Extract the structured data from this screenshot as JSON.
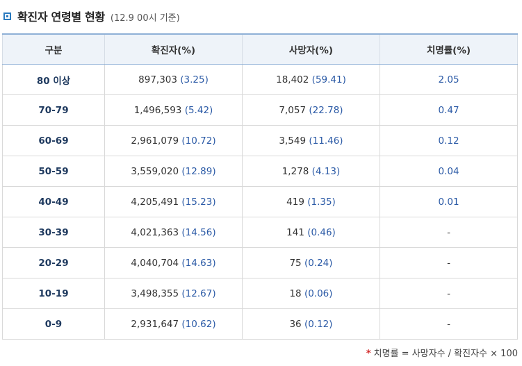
{
  "title": "확진자 연령별 현황",
  "title_note": "(12.9 00시 기준)",
  "table": {
    "headers": [
      "구분",
      "확진자(%)",
      "사망자(%)",
      "치명률(%)"
    ],
    "rows": [
      {
        "age": "80 이상",
        "cases": "897,303",
        "cases_pct": "(3.25)",
        "deaths": "18,402",
        "deaths_pct": "(59.41)",
        "cfr": "2.05"
      },
      {
        "age": "70-79",
        "cases": "1,496,593",
        "cases_pct": "(5.42)",
        "deaths": "7,057",
        "deaths_pct": "(22.78)",
        "cfr": "0.47"
      },
      {
        "age": "60-69",
        "cases": "2,961,079",
        "cases_pct": "(10.72)",
        "deaths": "3,549",
        "deaths_pct": "(11.46)",
        "cfr": "0.12"
      },
      {
        "age": "50-59",
        "cases": "3,559,020",
        "cases_pct": "(12.89)",
        "deaths": "1,278",
        "deaths_pct": "(4.13)",
        "cfr": "0.04"
      },
      {
        "age": "40-49",
        "cases": "4,205,491",
        "cases_pct": "(15.23)",
        "deaths": "419",
        "deaths_pct": "(1.35)",
        "cfr": "0.01"
      },
      {
        "age": "30-39",
        "cases": "4,021,363",
        "cases_pct": "(14.56)",
        "deaths": "141",
        "deaths_pct": "(0.46)",
        "cfr": "-"
      },
      {
        "age": "20-29",
        "cases": "4,040,704",
        "cases_pct": "(14.63)",
        "deaths": "75",
        "deaths_pct": "(0.24)",
        "cfr": "-"
      },
      {
        "age": "10-19",
        "cases": "3,498,355",
        "cases_pct": "(12.67)",
        "deaths": "18",
        "deaths_pct": "(0.06)",
        "cfr": "-"
      },
      {
        "age": "0-9",
        "cases": "2,931,647",
        "cases_pct": "(10.62)",
        "deaths": "36",
        "deaths_pct": "(0.12)",
        "cfr": "-"
      }
    ]
  },
  "footnote": {
    "marker": "*",
    "text": "치명률 = 사망자수 / 확진자수 × 100"
  },
  "colors": {
    "accent": "#2a7abf",
    "header_bg": "#eef3f9",
    "percent_text": "#2b5aa6",
    "footnote_marker": "#d22b2b"
  },
  "icons": {
    "title_marker": "square-bullet-icon"
  }
}
